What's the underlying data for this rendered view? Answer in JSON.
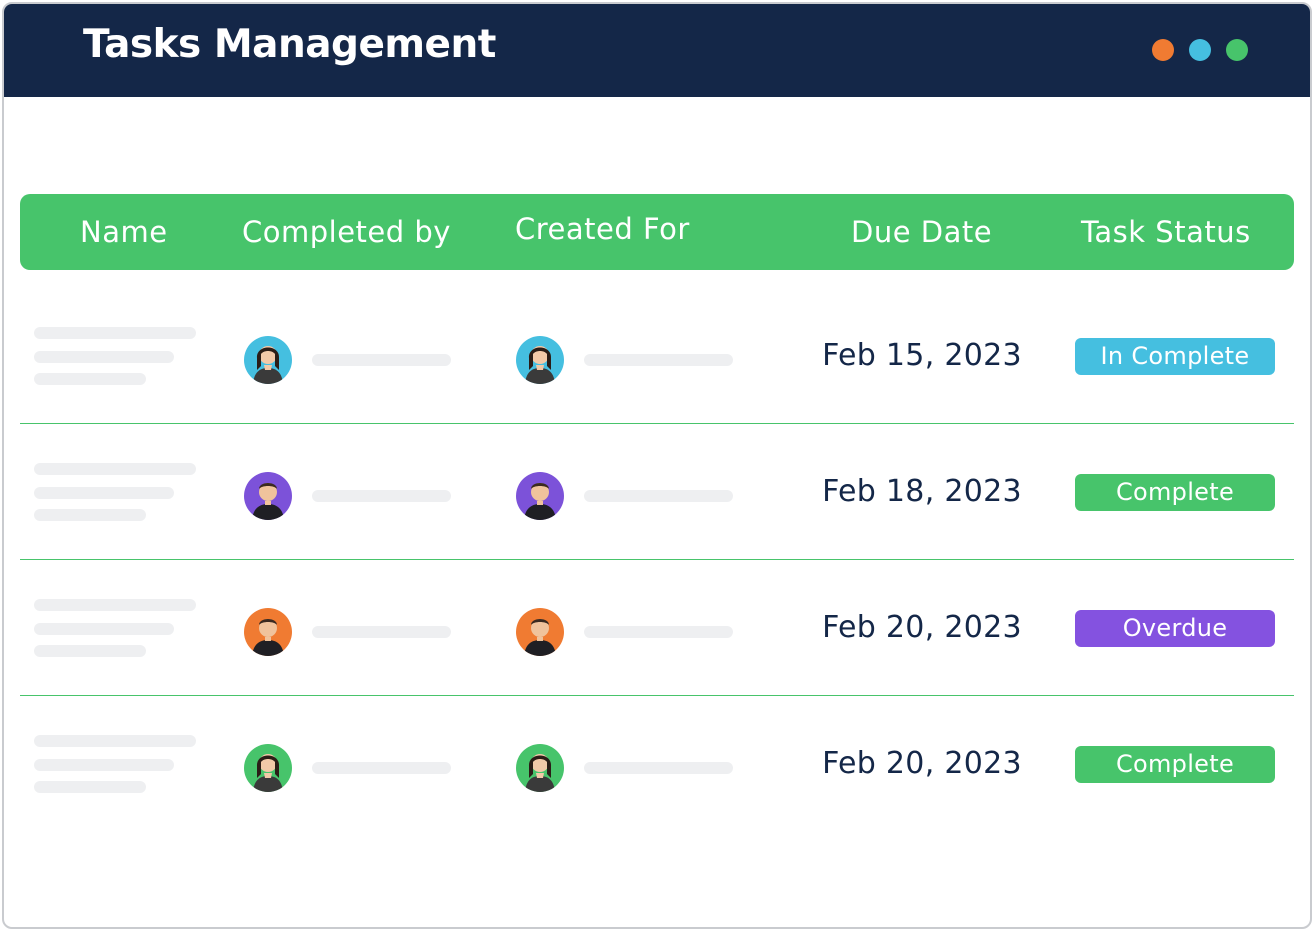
{
  "window": {
    "title": "Tasks Management",
    "traffic_lights": [
      {
        "name": "orange",
        "color": "#f07b32"
      },
      {
        "name": "blue",
        "color": "#45bfe0"
      },
      {
        "name": "green",
        "color": "#47c46b"
      }
    ]
  },
  "table": {
    "columns": [
      "Name",
      "Completed by",
      "Created For",
      "Due Date",
      "Task Status"
    ],
    "rows": [
      {
        "completed_by_avatar": {
          "icon": "woman-avatar-icon",
          "bg": "#45bfe0"
        },
        "created_for_avatar": {
          "icon": "woman-avatar-icon",
          "bg": "#45bfe0"
        },
        "due_date": "Feb 15, 2023",
        "status": {
          "label": "In Complete",
          "color": "#45bfe0"
        }
      },
      {
        "completed_by_avatar": {
          "icon": "man-avatar-icon",
          "bg": "#7c52d9"
        },
        "created_for_avatar": {
          "icon": "man-avatar-icon",
          "bg": "#7c52d9"
        },
        "due_date": "Feb 18, 2023",
        "status": {
          "label": "Complete",
          "color": "#47c46b"
        }
      },
      {
        "completed_by_avatar": {
          "icon": "man-avatar-icon",
          "bg": "#f07b32"
        },
        "created_for_avatar": {
          "icon": "man-avatar-icon",
          "bg": "#f07b32"
        },
        "due_date": "Feb 20, 2023",
        "status": {
          "label": "Overdue",
          "color": "#8452e0"
        }
      },
      {
        "completed_by_avatar": {
          "icon": "woman-avatar-icon",
          "bg": "#47c46b"
        },
        "created_for_avatar": {
          "icon": "woman-avatar-icon",
          "bg": "#47c46b"
        },
        "due_date": "Feb 20, 2023",
        "status": {
          "label": "Complete",
          "color": "#47c46b"
        }
      }
    ]
  },
  "colors": {
    "titlebar": "#142748",
    "header": "#47c46b",
    "text_dark": "#142748",
    "placeholder": "#eeeff1"
  }
}
